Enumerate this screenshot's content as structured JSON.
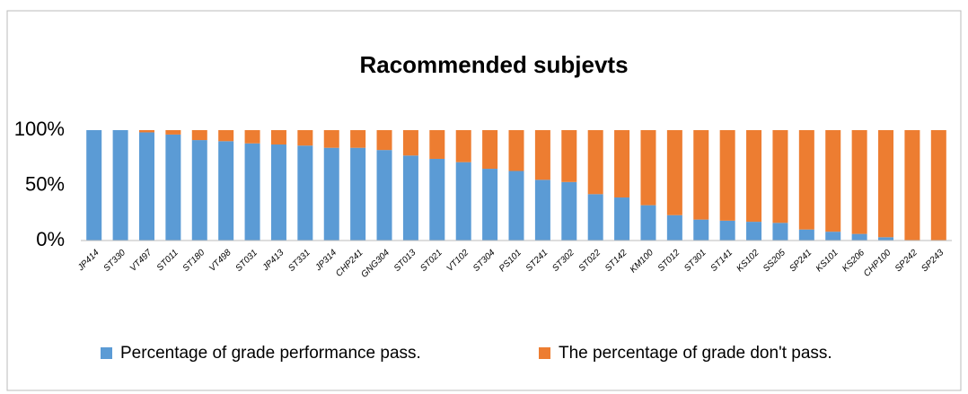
{
  "chart_data": {
    "type": "stacked_bar_100",
    "title": "Racommended subjevts",
    "categories": [
      "JP414",
      "ST330",
      "VT497",
      "ST011",
      "ST180",
      "VT498",
      "ST031",
      "JP413",
      "ST331",
      "JP314",
      "CHP241",
      "GNG304",
      "ST013",
      "ST021",
      "VT102",
      "ST304",
      "PS101",
      "ST241",
      "ST302",
      "ST022",
      "ST142",
      "KM100",
      "ST012",
      "ST301",
      "ST141",
      "KS102",
      "SS205",
      "SP241",
      "KS101",
      "KS206",
      "CHP100",
      "SP242",
      "SP243"
    ],
    "series": [
      {
        "name": "Percentage of grade performance pass.",
        "color": "#5b9bd5",
        "values": [
          100,
          100,
          98,
          96,
          91,
          90,
          88,
          87,
          86,
          84,
          84,
          82,
          77,
          74,
          71,
          65,
          63,
          55,
          53,
          42,
          39,
          32,
          23,
          19,
          18,
          17,
          16,
          10,
          8,
          6,
          3,
          0,
          0
        ]
      },
      {
        "name": "The percentage of grade don't pass.",
        "color": "#ed7d31",
        "values": [
          0,
          0,
          2,
          4,
          9,
          10,
          12,
          13,
          14,
          16,
          16,
          18,
          23,
          26,
          29,
          35,
          37,
          45,
          47,
          58,
          61,
          68,
          77,
          81,
          82,
          83,
          84,
          90,
          92,
          94,
          97,
          100,
          100
        ]
      }
    ],
    "ylim": [
      0,
      100
    ],
    "yticks": [
      {
        "value": 0,
        "label": "0%"
      },
      {
        "value": 50,
        "label": "50%"
      },
      {
        "value": 100,
        "label": "100%"
      }
    ],
    "grid": false,
    "legend": "bottom"
  }
}
